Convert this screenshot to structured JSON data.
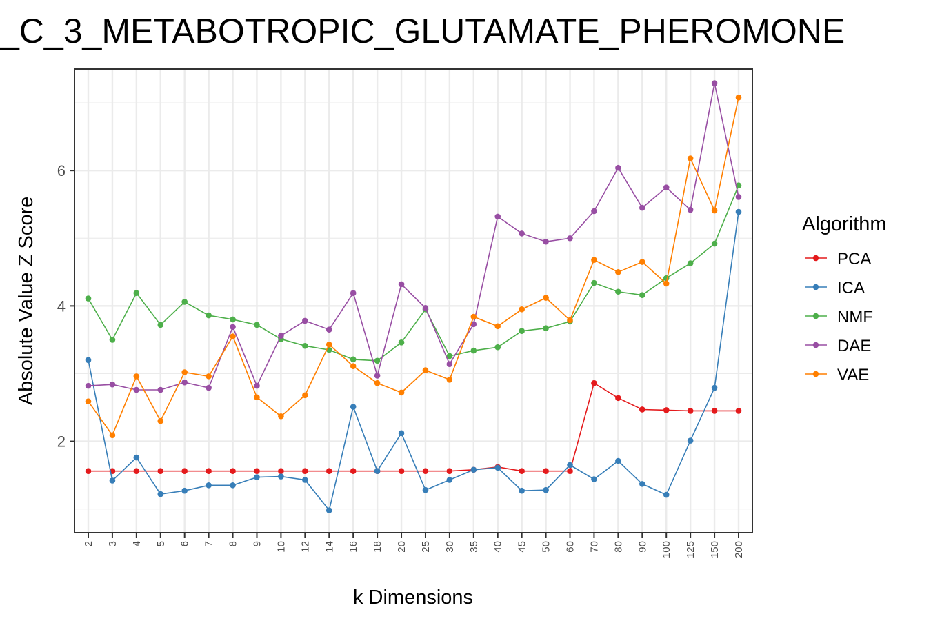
{
  "chart_data": {
    "type": "line",
    "title": "_C_3_METABOTROPIC_GLUTAMATE_PHEROMONE",
    "xlabel": "k Dimensions",
    "ylabel": "Absolute Value Z Score",
    "categories": [
      "2",
      "3",
      "4",
      "5",
      "6",
      "7",
      "8",
      "9",
      "10",
      "12",
      "14",
      "16",
      "18",
      "20",
      "25",
      "30",
      "35",
      "40",
      "45",
      "50",
      "60",
      "70",
      "80",
      "90",
      "100",
      "125",
      "150",
      "200"
    ],
    "y_ticks": [
      2,
      4,
      6
    ],
    "ylim": [
      0.65,
      7.5
    ],
    "grid": true,
    "legend": {
      "title": "Algorithm",
      "position": "right"
    },
    "series": [
      {
        "name": "PCA",
        "color": "#e41a1c",
        "values": [
          1.56,
          1.56,
          1.56,
          1.56,
          1.56,
          1.56,
          1.56,
          1.56,
          1.56,
          1.56,
          1.56,
          1.56,
          1.56,
          1.56,
          1.56,
          1.56,
          1.58,
          1.62,
          1.56,
          1.56,
          1.56,
          2.86,
          2.64,
          2.47,
          2.46,
          2.45,
          2.45,
          2.45
        ]
      },
      {
        "name": "ICA",
        "color": "#377eb8",
        "values": [
          3.2,
          1.42,
          1.76,
          1.22,
          1.27,
          1.35,
          1.35,
          1.47,
          1.48,
          1.43,
          0.98,
          2.51,
          1.56,
          2.12,
          1.28,
          1.43,
          1.58,
          1.61,
          1.27,
          1.28,
          1.65,
          1.44,
          1.71,
          1.37,
          1.21,
          2.01,
          2.79,
          5.39
        ]
      },
      {
        "name": "NMF",
        "color": "#4daf4a",
        "values": [
          4.11,
          3.5,
          4.19,
          3.72,
          4.06,
          3.86,
          3.8,
          3.72,
          3.51,
          3.41,
          3.35,
          3.21,
          3.19,
          3.46,
          3.95,
          3.26,
          3.34,
          3.39,
          3.63,
          3.67,
          3.77,
          4.34,
          4.21,
          4.16,
          4.41,
          4.63,
          4.92,
          5.78
        ]
      },
      {
        "name": "DAE",
        "color": "#984ea3",
        "values": [
          2.82,
          2.84,
          2.76,
          2.76,
          2.87,
          2.79,
          3.69,
          2.82,
          3.56,
          3.78,
          3.65,
          4.19,
          2.97,
          4.32,
          3.97,
          3.14,
          3.73,
          5.32,
          5.07,
          4.95,
          5.0,
          5.4,
          6.04,
          5.45,
          5.75,
          5.42,
          7.29,
          5.61
        ]
      },
      {
        "name": "VAE",
        "color": "#ff7f00",
        "values": [
          2.59,
          2.09,
          2.96,
          2.3,
          3.02,
          2.96,
          3.55,
          2.65,
          2.37,
          2.68,
          3.43,
          3.11,
          2.86,
          2.72,
          3.05,
          2.91,
          3.84,
          3.7,
          3.95,
          4.12,
          3.79,
          4.68,
          4.5,
          4.65,
          4.33,
          6.18,
          5.41,
          7.08
        ]
      }
    ]
  }
}
